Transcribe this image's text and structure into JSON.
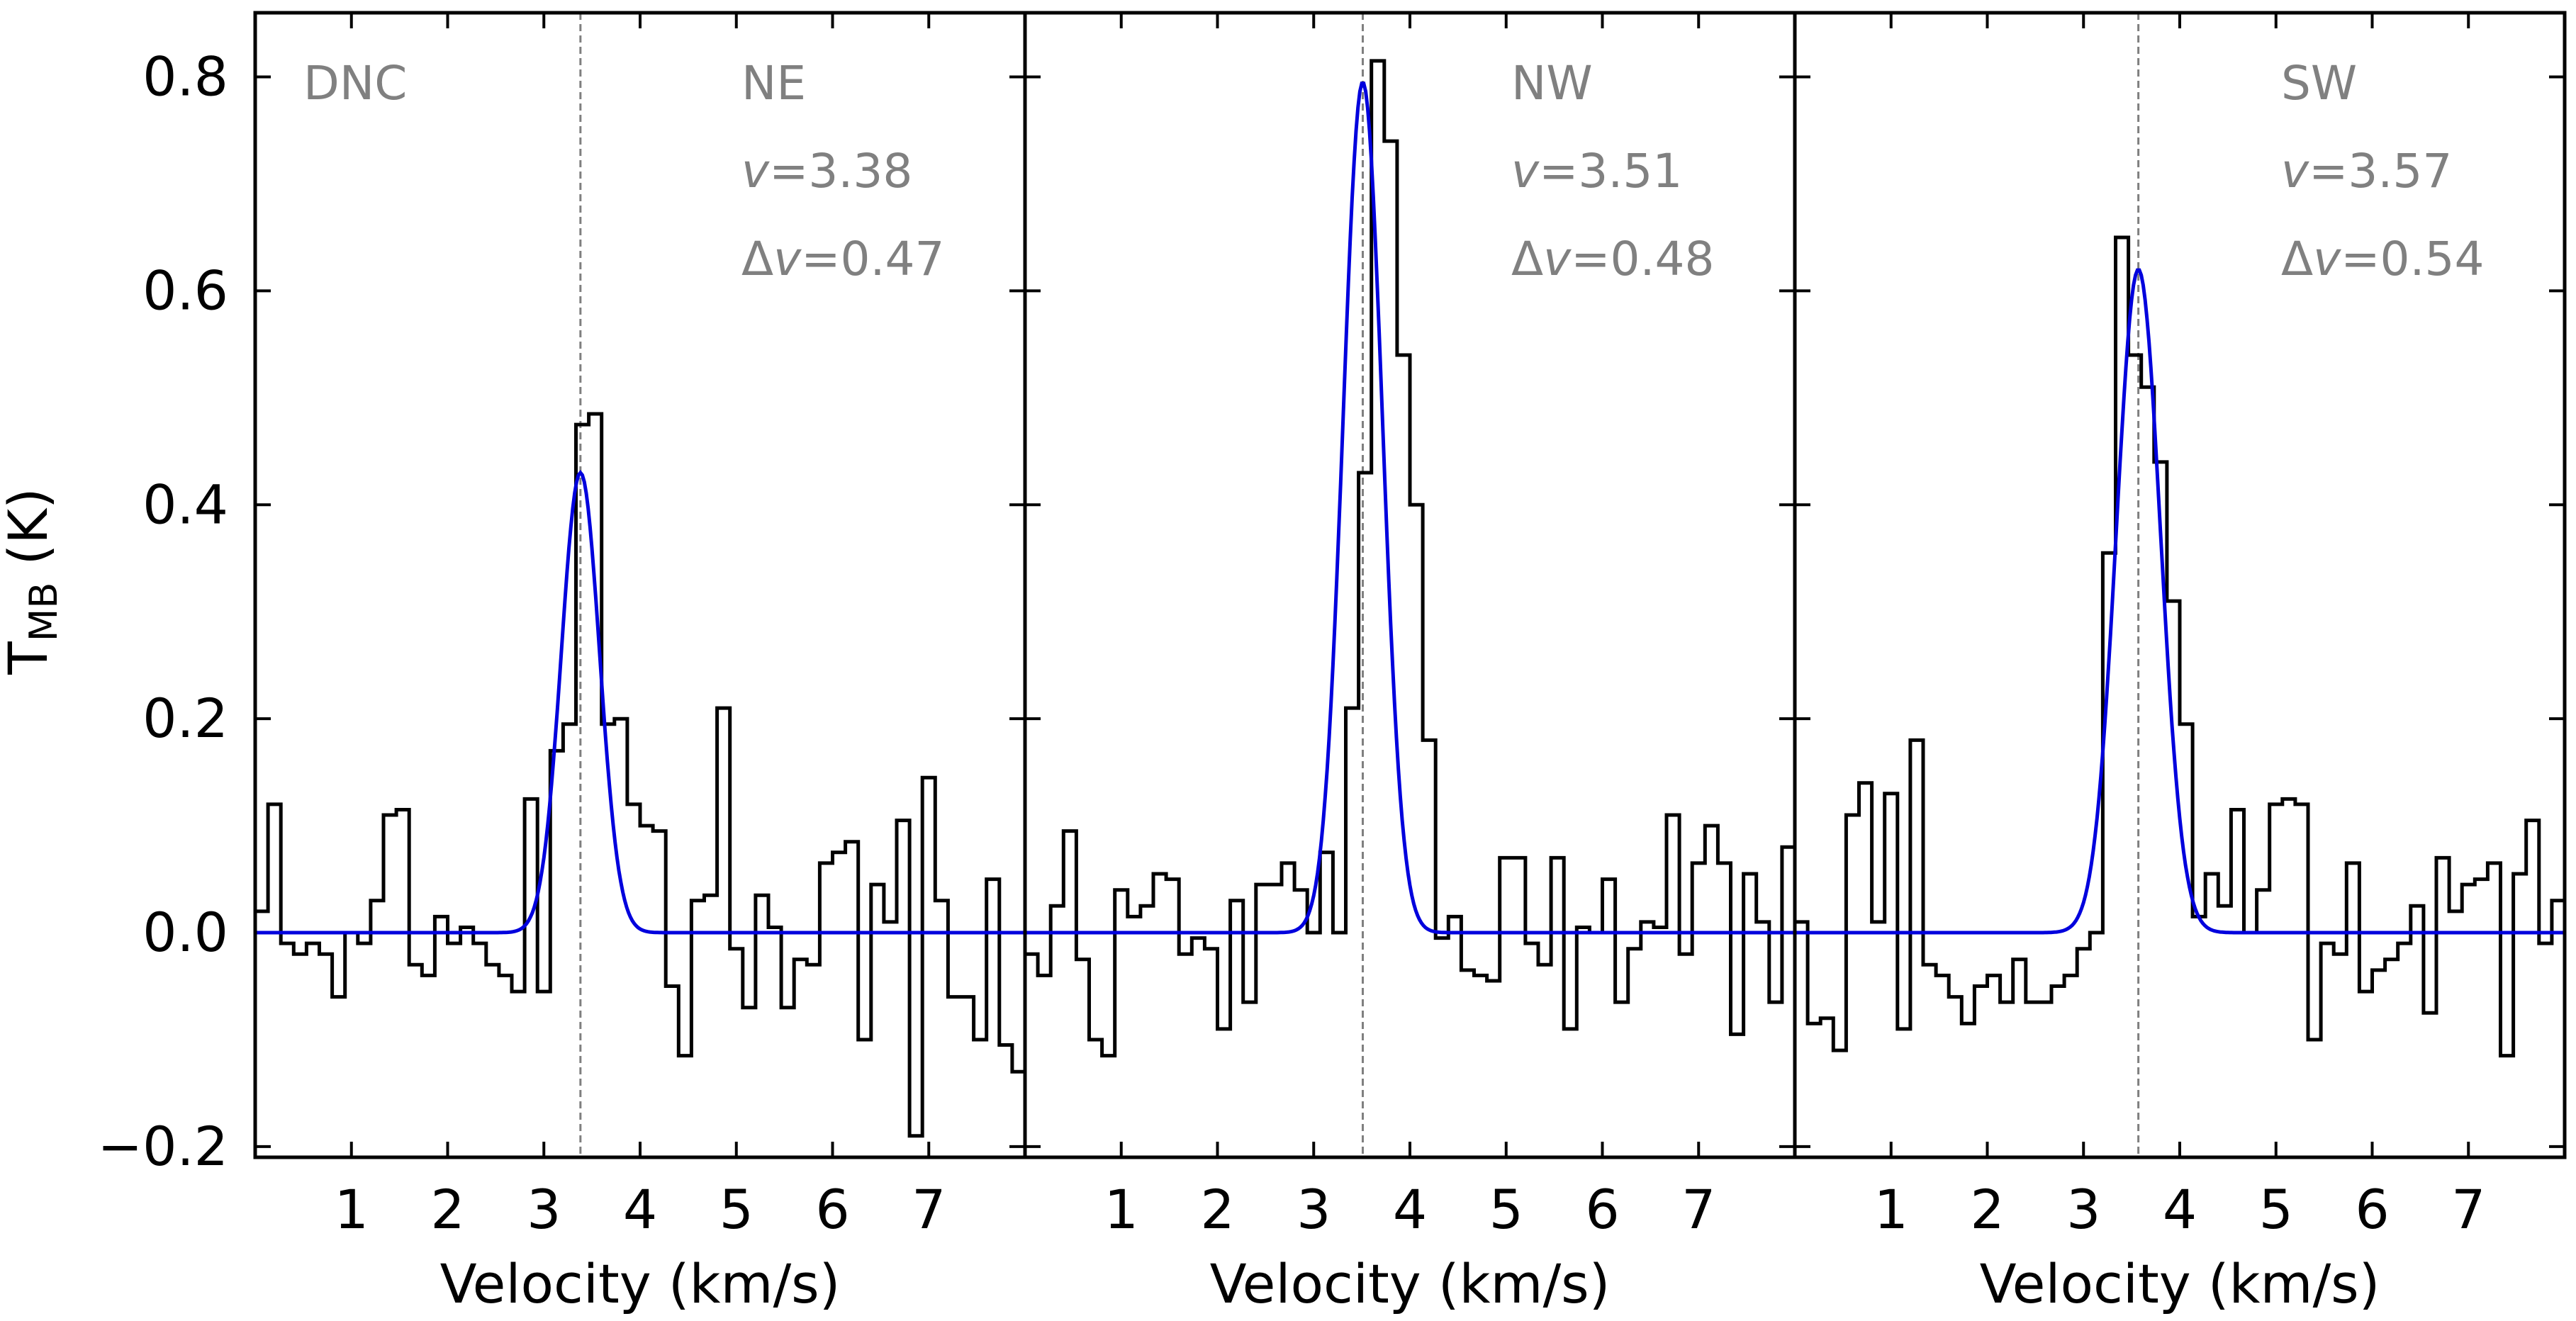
{
  "chart_data": {
    "type": "line",
    "ylabel": "T",
    "ylabel_sub": "MB",
    "ylabel_unit": " (K)",
    "shared_ylim": [
      -0.21,
      0.86
    ],
    "shared_xlim": [
      0.0,
      8.0
    ],
    "y_ticks": [
      "0.8",
      "0.6",
      "0.4",
      "0.2",
      "0.0",
      "−0.2"
    ],
    "y_tick_values": [
      0.8,
      0.6,
      0.4,
      0.2,
      0.0,
      -0.2
    ],
    "x_ticks": [
      "1",
      "2",
      "3",
      "4",
      "5",
      "6",
      "7"
    ],
    "x_tick_values": [
      1,
      2,
      3,
      4,
      5,
      6,
      7
    ],
    "xlabel": "Velocity (km/s)",
    "molecule": "DNC",
    "colors": {
      "observed": "#000000",
      "fit": "#0000dd",
      "ref_line": "#7f7f7f",
      "annotation": "#808080"
    },
    "panels": [
      {
        "name": "NE",
        "v_label": "v=3.38",
        "v_prefix": "v",
        "v_value": "=3.38",
        "dv_label": "Δv=0.47",
        "dv_prefix": "Δ",
        "dv_var": "v",
        "dv_value": "=0.47",
        "center": 3.38,
        "fwhm": 0.47,
        "peak": 0.43,
        "observed_step": [
          0.02,
          0.12,
          -0.01,
          -0.02,
          -0.01,
          -0.02,
          -0.06,
          0.0,
          -0.01,
          0.03,
          0.11,
          0.115,
          -0.03,
          -0.04,
          0.015,
          -0.01,
          0.005,
          -0.01,
          -0.03,
          -0.04,
          -0.055,
          0.125,
          -0.055,
          0.17,
          0.195,
          0.475,
          0.485,
          0.195,
          0.2,
          0.12,
          0.1,
          0.095,
          -0.05,
          -0.115,
          0.03,
          0.035,
          0.21,
          -0.015,
          -0.07,
          0.035,
          0.005,
          -0.07,
          -0.025,
          -0.03,
          0.065,
          0.075,
          0.085,
          -0.1,
          0.045,
          0.01,
          0.105,
          -0.19,
          0.145,
          0.03,
          -0.06,
          -0.06,
          -0.1,
          0.05,
          -0.105,
          -0.13
        ]
      },
      {
        "name": "NW",
        "v_label": "v=3.51",
        "v_prefix": "v",
        "v_value": "=3.51",
        "dv_label": "Δv=0.48",
        "dv_prefix": "Δ",
        "dv_var": "v",
        "dv_value": "=0.48",
        "center": 3.51,
        "fwhm": 0.48,
        "peak": 0.795,
        "observed_step": [
          -0.02,
          -0.04,
          0.025,
          0.095,
          -0.025,
          -0.1,
          -0.115,
          0.04,
          0.015,
          0.025,
          0.055,
          0.05,
          -0.02,
          -0.005,
          -0.015,
          -0.09,
          0.03,
          -0.065,
          0.045,
          0.045,
          0.065,
          0.04,
          0.0,
          0.075,
          0.0,
          0.21,
          0.43,
          0.815,
          0.74,
          0.54,
          0.4,
          0.18,
          -0.005,
          0.015,
          -0.035,
          -0.04,
          -0.045,
          0.07,
          0.07,
          -0.01,
          -0.03,
          0.07,
          -0.09,
          0.005,
          0.0,
          0.05,
          -0.065,
          -0.015,
          0.01,
          0.005,
          0.11,
          -0.02,
          0.065,
          0.1,
          0.065,
          -0.095,
          0.055,
          0.01,
          -0.065,
          0.08
        ]
      },
      {
        "name": "SW",
        "v_label": "v=3.57",
        "v_prefix": "v",
        "v_value": "=3.57",
        "dv_label": "Δv=0.54",
        "dv_prefix": "Δ",
        "dv_var": "v",
        "dv_value": "=0.54",
        "center": 3.57,
        "fwhm": 0.54,
        "peak": 0.62,
        "observed_step": [
          0.01,
          -0.085,
          -0.08,
          -0.11,
          0.11,
          0.14,
          0.01,
          0.13,
          -0.09,
          0.18,
          -0.03,
          -0.04,
          -0.06,
          -0.085,
          -0.05,
          -0.04,
          -0.065,
          -0.025,
          -0.065,
          -0.065,
          -0.05,
          -0.04,
          -0.015,
          0.0,
          0.355,
          0.65,
          0.54,
          0.51,
          0.44,
          0.31,
          0.195,
          0.015,
          0.055,
          0.025,
          0.115,
          0.0,
          0.04,
          0.12,
          0.125,
          0.12,
          -0.1,
          -0.01,
          -0.02,
          0.065,
          -0.055,
          -0.035,
          -0.025,
          -0.01,
          0.025,
          -0.075,
          0.07,
          0.02,
          0.045,
          0.05,
          0.065,
          -0.115,
          0.055,
          0.105,
          -0.01,
          0.03
        ]
      }
    ]
  }
}
